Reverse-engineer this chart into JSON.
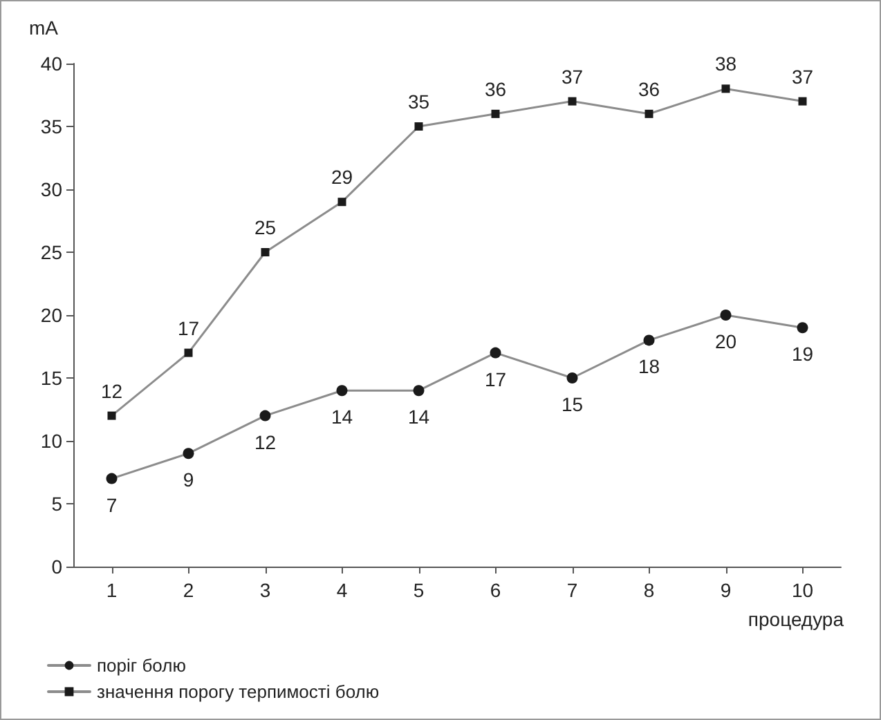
{
  "chart_data": {
    "type": "line",
    "ylabel": "mA",
    "xlabel": "процедура",
    "categories": [
      "1",
      "2",
      "3",
      "4",
      "5",
      "6",
      "7",
      "8",
      "9",
      "10"
    ],
    "series": [
      {
        "name": "поріг болю",
        "color": "#8c8c8c",
        "marker": "circle",
        "values": [
          7,
          9,
          12,
          14,
          14,
          17,
          15,
          18,
          20,
          19
        ]
      },
      {
        "name": "значення порогу терпимості болю",
        "color": "#8c8c8c",
        "marker": "square",
        "values": [
          12,
          17,
          25,
          29,
          35,
          36,
          37,
          36,
          38,
          37
        ]
      }
    ],
    "ylim": [
      0,
      40
    ],
    "yticks": [
      0,
      5,
      10,
      15,
      20,
      25,
      30,
      35,
      40
    ],
    "grid": false,
    "legend": "bottom left",
    "data_labels": true
  }
}
